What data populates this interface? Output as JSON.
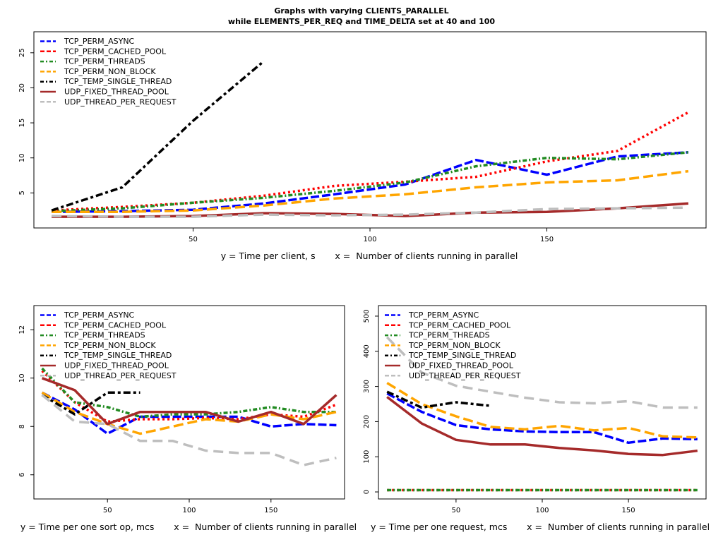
{
  "title_line1": "Graphs with varying CLIENTS_PARALLEL",
  "title_line2": "while ELEMENTS_PER_REQ and TIME_DELTA set at 40 and 100",
  "series_styles": [
    {
      "name": "TCP_PERM_ASYNC",
      "color": "#0000ff",
      "dash": "12,4"
    },
    {
      "name": "TCP_PERM_CACHED_POOL",
      "color": "#ff0000",
      "dash": "3,4"
    },
    {
      "name": "TCP_PERM_THREADS",
      "color": "#228b22",
      "dash": "6,3,2,3"
    },
    {
      "name": "TCP_PERM_NON_BLOCK",
      "color": "#ffa500",
      "dash": "14,6"
    },
    {
      "name": "TCP_TEMP_SINGLE_THREAD",
      "color": "#000000",
      "dash": "10,4,4,4"
    },
    {
      "name": "UDP_FIXED_THREAD_POOL",
      "color": "#a52a2a",
      "dash": ""
    },
    {
      "name": "UDP_THREAD_PER_REQUEST",
      "color": "#bebebe",
      "dash": "14,8"
    }
  ],
  "chart_data": [
    {
      "type": "line",
      "caption": "y = Time per client, s       x =  Number of clients running in parallel",
      "xlim": [
        5,
        195
      ],
      "ylim": [
        0,
        28
      ],
      "xticks": [
        50,
        100,
        150
      ],
      "yticks": [
        5,
        10,
        15,
        20,
        25
      ],
      "legend_position": "top-left",
      "series": [
        {
          "name": "TCP_PERM_ASYNC",
          "x": [
            10,
            30,
            50,
            70,
            90,
            110,
            130,
            150,
            170,
            190
          ],
          "y": [
            2.3,
            2.4,
            2.6,
            3.5,
            4.8,
            6.2,
            9.7,
            7.6,
            10.2,
            10.8
          ]
        },
        {
          "name": "TCP_PERM_CACHED_POOL",
          "x": [
            10,
            30,
            50,
            70,
            90,
            110,
            130,
            150,
            170,
            190
          ],
          "y": [
            2.5,
            3.0,
            3.6,
            4.6,
            6.0,
            6.6,
            7.3,
            9.5,
            11.0,
            16.5
          ]
        },
        {
          "name": "TCP_PERM_THREADS",
          "x": [
            10,
            30,
            50,
            70,
            90,
            110,
            130,
            150,
            170,
            190
          ],
          "y": [
            2.4,
            2.8,
            3.6,
            4.3,
            5.3,
            6.5,
            8.8,
            10.0,
            9.8,
            10.8
          ]
        },
        {
          "name": "TCP_PERM_NON_BLOCK",
          "x": [
            10,
            30,
            50,
            70,
            90,
            110,
            130,
            150,
            170,
            190
          ],
          "y": [
            2.3,
            2.3,
            2.5,
            3.2,
            4.2,
            4.8,
            5.8,
            6.5,
            6.8,
            8.1
          ]
        },
        {
          "name": "TCP_TEMP_SINGLE_THREAD",
          "x": [
            10,
            30,
            50,
            70
          ],
          "y": [
            2.5,
            5.8,
            15.3,
            23.8
          ]
        },
        {
          "name": "UDP_FIXED_THREAD_POOL",
          "x": [
            10,
            30,
            50,
            70,
            90,
            110,
            130,
            150,
            170,
            190
          ],
          "y": [
            1.6,
            1.6,
            1.7,
            2.1,
            2.0,
            1.7,
            2.2,
            2.3,
            2.8,
            3.5
          ]
        },
        {
          "name": "UDP_THREAD_PER_REQUEST",
          "x": [
            10,
            30,
            50,
            70,
            90,
            110,
            130,
            150,
            170,
            190
          ],
          "y": [
            1.7,
            1.6,
            1.6,
            1.9,
            1.8,
            1.9,
            2.2,
            2.7,
            2.8,
            2.9
          ]
        }
      ]
    },
    {
      "type": "line",
      "caption": "y = Time per one sort op, mcs       x =  Number of clients running in parallel",
      "xlim": [
        5,
        195
      ],
      "ylim": [
        5,
        13
      ],
      "xticks": [
        50,
        100,
        150
      ],
      "yticks": [
        6,
        8,
        10,
        12
      ],
      "legend_position": "top-left",
      "series": [
        {
          "name": "TCP_PERM_ASYNC",
          "x": [
            10,
            30,
            50,
            70,
            90,
            110,
            130,
            150,
            170,
            190
          ],
          "y": [
            9.4,
            8.7,
            7.7,
            8.4,
            8.4,
            8.4,
            8.4,
            8.0,
            8.1,
            8.05
          ]
        },
        {
          "name": "TCP_PERM_CACHED_POOL",
          "x": [
            10,
            30,
            50,
            70,
            90,
            110,
            130,
            150,
            170,
            190
          ],
          "y": [
            10.3,
            9.0,
            8.2,
            8.3,
            8.3,
            8.35,
            8.3,
            8.5,
            8.4,
            8.9
          ]
        },
        {
          "name": "TCP_PERM_THREADS",
          "x": [
            10,
            30,
            50,
            70,
            90,
            110,
            130,
            150,
            170,
            190
          ],
          "y": [
            10.4,
            9.0,
            8.8,
            8.4,
            8.5,
            8.5,
            8.6,
            8.8,
            8.6,
            8.6
          ]
        },
        {
          "name": "TCP_PERM_NON_BLOCK",
          "x": [
            10,
            30,
            50,
            70,
            90,
            110,
            130,
            150,
            170,
            190
          ],
          "y": [
            9.4,
            8.6,
            8.1,
            7.7,
            8.0,
            8.3,
            8.2,
            8.5,
            8.3,
            8.6
          ]
        },
        {
          "name": "TCP_TEMP_SINGLE_THREAD",
          "x": [
            10,
            30,
            50,
            70
          ],
          "y": [
            9.3,
            8.5,
            9.4,
            9.4
          ]
        },
        {
          "name": "UDP_FIXED_THREAD_POOL",
          "x": [
            10,
            30,
            50,
            70,
            90,
            110,
            130,
            150,
            170,
            190
          ],
          "y": [
            10.0,
            9.5,
            8.1,
            8.6,
            8.6,
            8.6,
            8.2,
            8.6,
            8.1,
            9.3
          ]
        },
        {
          "name": "UDP_THREAD_PER_REQUEST",
          "x": [
            10,
            30,
            50,
            70,
            90,
            110,
            130,
            150,
            170,
            190
          ],
          "y": [
            9.3,
            8.2,
            8.1,
            7.4,
            7.4,
            7.0,
            6.9,
            6.9,
            6.4,
            6.7
          ]
        }
      ]
    },
    {
      "type": "line",
      "caption": "y = Time per one request, mcs       x =  Number of clients running in parallel",
      "xlim": [
        5,
        195
      ],
      "ylim": [
        -20,
        530
      ],
      "xticks": [
        50,
        100,
        150
      ],
      "yticks": [
        0,
        100,
        200,
        300,
        400,
        500
      ],
      "legend_position": "top-left",
      "series": [
        {
          "name": "TCP_PERM_ASYNC",
          "x": [
            10,
            30,
            50,
            70,
            90,
            110,
            130,
            150,
            170,
            190
          ],
          "y": [
            280,
            228,
            190,
            178,
            172,
            170,
            170,
            140,
            152,
            150
          ]
        },
        {
          "name": "TCP_PERM_CACHED_POOL",
          "x": [
            10,
            30,
            50,
            70,
            90,
            110,
            130,
            150,
            170,
            190
          ],
          "y": [
            5,
            5,
            5,
            5,
            5,
            5,
            5,
            5,
            5,
            5
          ]
        },
        {
          "name": "TCP_PERM_THREADS",
          "x": [
            10,
            30,
            50,
            70,
            90,
            110,
            130,
            150,
            170,
            190
          ],
          "y": [
            5,
            5,
            5,
            5,
            5,
            5,
            5,
            5,
            5,
            5
          ]
        },
        {
          "name": "TCP_PERM_NON_BLOCK",
          "x": [
            10,
            30,
            50,
            70,
            90,
            110,
            130,
            150,
            170,
            190
          ],
          "y": [
            310,
            250,
            215,
            185,
            178,
            188,
            175,
            182,
            158,
            155
          ]
        },
        {
          "name": "TCP_TEMP_SINGLE_THREAD",
          "x": [
            10,
            30,
            50,
            70
          ],
          "y": [
            285,
            240,
            255,
            245
          ]
        },
        {
          "name": "UDP_FIXED_THREAD_POOL",
          "x": [
            10,
            30,
            50,
            70,
            90,
            110,
            130,
            150,
            170,
            190
          ],
          "y": [
            270,
            195,
            148,
            135,
            135,
            125,
            118,
            108,
            105,
            117
          ]
        },
        {
          "name": "UDP_THREAD_PER_REQUEST",
          "x": [
            10,
            30,
            50,
            70,
            90,
            110,
            130,
            150,
            170,
            190
          ],
          "y": [
            440,
            340,
            302,
            285,
            268,
            255,
            252,
            258,
            240,
            240
          ]
        }
      ]
    }
  ]
}
